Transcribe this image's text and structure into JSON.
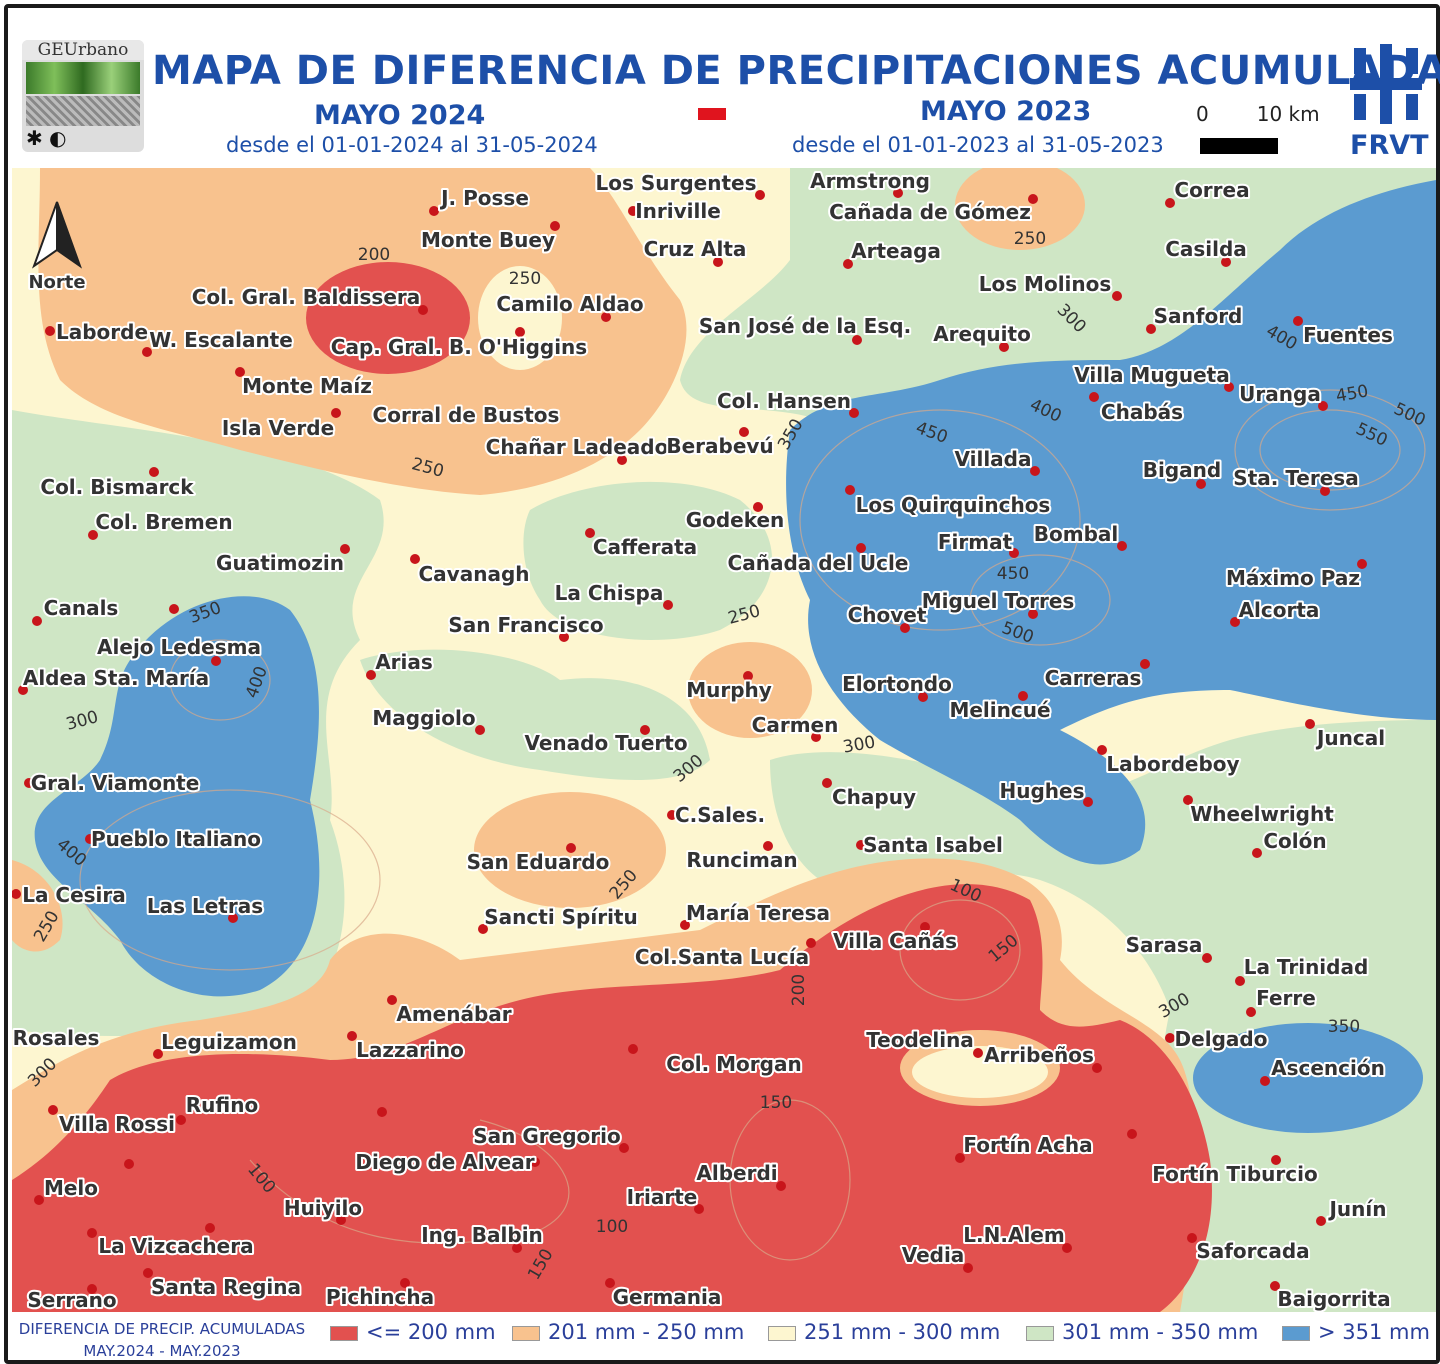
{
  "header": {
    "logo_text": "GEUrbano",
    "title": "MAPA DE DIFERENCIA DE PRECIPITACIONES ACUMULADAS",
    "left_period": "MAYO 2024",
    "left_range": "desde el 01-01-2024 al 31-05-2024",
    "right_period": "MAYO 2023",
    "right_range": "desde el 01-01-2023 al 31-05-2023",
    "scale_start": "0",
    "scale_end": "10 km",
    "institution": "FRVT"
  },
  "north_label": "Norte",
  "colors": {
    "le200": "#e2514f",
    "201_250": "#f8c28e",
    "251_300": "#fdf6d0",
    "301_350": "#cfe6c5",
    "gt351": "#5b9bd0",
    "town_dot": "#c8151b",
    "title": "#1d4fa8"
  },
  "towns": [
    "J. Posse",
    "Monte Buey",
    "Los Surgentes",
    "Inriville",
    "Cruz Alta",
    "Armstrong",
    "Cañada de Gómez",
    "Arteaga",
    "Correa",
    "Casilda",
    "Col. Gral. Baldissera",
    "Camilo Aldao",
    "Laborde",
    "W. Escalante",
    "Cap. Gral. B. O'Higgins",
    "San José de la Esq.",
    "Arequito",
    "Los Molinos",
    "Sanford",
    "Fuentes",
    "Monte Maíz",
    "Corral de Bustos",
    "Isla Verde",
    "Chañar Ladeado",
    "Berabevú",
    "Col. Hansen",
    "Villa Mugueta",
    "Chabás",
    "Uranga",
    "Villada",
    "Bigand",
    "Sta. Teresa",
    "Col. Bismarck",
    "Col. Bremen",
    "Los Quirquinchos",
    "Godeken",
    "Cafferata",
    "Guatimozin",
    "Cavanagh",
    "Firmat",
    "Bombal",
    "Cañada del Ucle",
    "Máximo Paz",
    "Canals",
    "Alejo Ledesma",
    "La Chispa",
    "San Francisco",
    "Alcorta",
    "Chovet",
    "Miguel Torres",
    "Aldea Sta. María",
    "Arias",
    "Murphy",
    "Elortondo",
    "Carreras",
    "Melincué",
    "Maggiolo",
    "Venado Tuerto",
    "Carmen",
    "Juncal",
    "Labordeboy",
    "Gral. Viamonte",
    "Chapuy",
    "Hughes",
    "Wheelwright",
    "C.Sales.",
    "Pueblo Italiano",
    "San Eduardo",
    "Runciman",
    "Santa Isabel",
    "Colón",
    "La Cesira",
    "Las Letras",
    "Sancti Spíritu",
    "María Teresa",
    "Villa Cañás",
    "Col.Santa Lucía",
    "Sarasa",
    "La Trinidad",
    "Ferre",
    "Amenábar",
    "Rosales",
    "Leguizamon",
    "Lazzarino",
    "Teodelina",
    "Arribeños",
    "Delgado",
    "Col. Morgan",
    "Ascención",
    "Villa Rossi",
    "Rufino",
    "San Gregorio",
    "Diego de Alvear",
    "Fortín Acha",
    "Fortín Tiburcio",
    "Alberdi",
    "Melo",
    "Iriarte",
    "Huiyilo",
    "Junín",
    "La  Vizcachera",
    "Ing. Balbin",
    "L.N.Alem",
    "Saforcada",
    "Vedia",
    "Santa Regina",
    "Pichincha",
    "Germania",
    "Serrano",
    "Baigorrita"
  ],
  "contour_labels": [
    "200",
    "250",
    "250",
    "250",
    "300",
    "400",
    "450",
    "400",
    "350",
    "450",
    "500",
    "550",
    "250",
    "350",
    "450",
    "500",
    "400",
    "300",
    "300",
    "300",
    "400",
    "250",
    "250",
    "100",
    "150",
    "200",
    "300",
    "350",
    "300",
    "150",
    "100",
    "100",
    "150"
  ],
  "legend": {
    "title_line1": "DIFERENCIA DE PRECIP. ACUMULADAS",
    "title_line2": "MAY.2024 - MAY.2023",
    "items": [
      {
        "label": "<= 200 mm",
        "color": "#e2514f"
      },
      {
        "label": "201 mm - 250 mm",
        "color": "#f8c28e"
      },
      {
        "label": "251 mm - 300 mm",
        "color": "#fdf6d0"
      },
      {
        "label": "301 mm - 350 mm",
        "color": "#cfe6c5"
      },
      {
        "label": "> 351 mm",
        "color": "#5b9bd0"
      }
    ]
  }
}
